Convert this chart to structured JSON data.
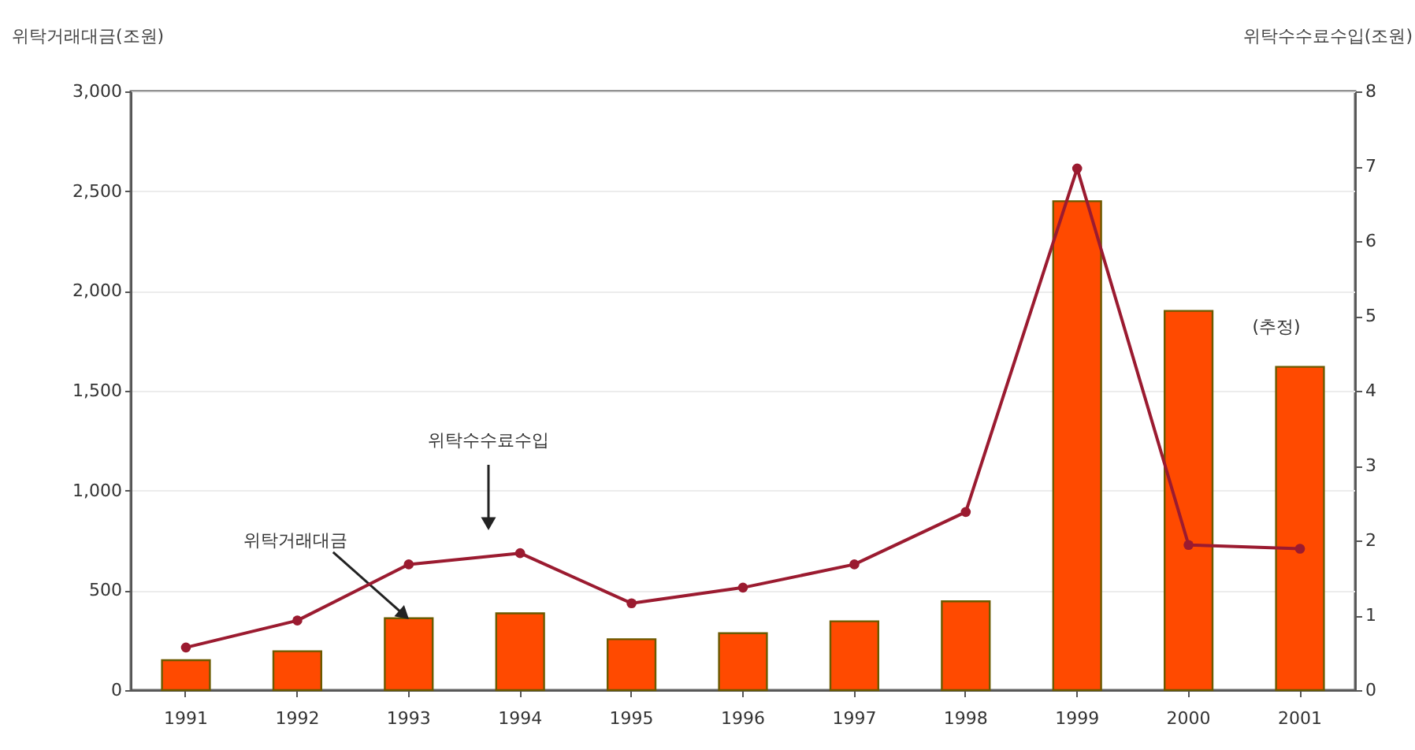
{
  "chart_data": {
    "type": "bar",
    "ylabel": "위탁거래대금(조원)",
    "y2label": "위탁수수료수입(조원)",
    "categories": [
      "1991",
      "1992",
      "1993",
      "1994",
      "1995",
      "1996",
      "1997",
      "1998",
      "1999",
      "2000",
      "2001"
    ],
    "series": [
      {
        "color": "#ff4a00",
        "values": [
          150,
          195,
          360,
          385,
          255,
          285,
          345,
          445,
          2450,
          1900,
          1620
        ]
      },
      {
        "type": "line",
        "axis": "y2",
        "color": "#9b1b30",
        "values": [
          0.57,
          0.93,
          1.68,
          1.83,
          1.16,
          1.37,
          1.68,
          2.38,
          6.97,
          1.94,
          1.89
        ]
      }
    ],
    "ylim": [
      0,
      3000
    ],
    "yticks": [
      0,
      500,
      {
        "value": 1000,
        "label": "1,000"
      },
      {
        "value": 1500,
        "label": "1,500"
      },
      {
        "value": 2000,
        "label": "2,000"
      },
      {
        "value": 2500,
        "label": "2,500"
      },
      {
        "value": 3000,
        "label": "3,000"
      }
    ],
    "y2lim": [
      0,
      8
    ],
    "y2ticks": [
      0,
      1,
      2,
      3,
      4,
      5,
      6,
      7,
      8
    ],
    "grid": "y",
    "marker": "circle",
    "annotations": [
      "위탁수수료수입",
      {
        "text": "위탁거래대금",
        "x": "1993",
        "y": 360
      },
      "(추정)"
    ]
  }
}
